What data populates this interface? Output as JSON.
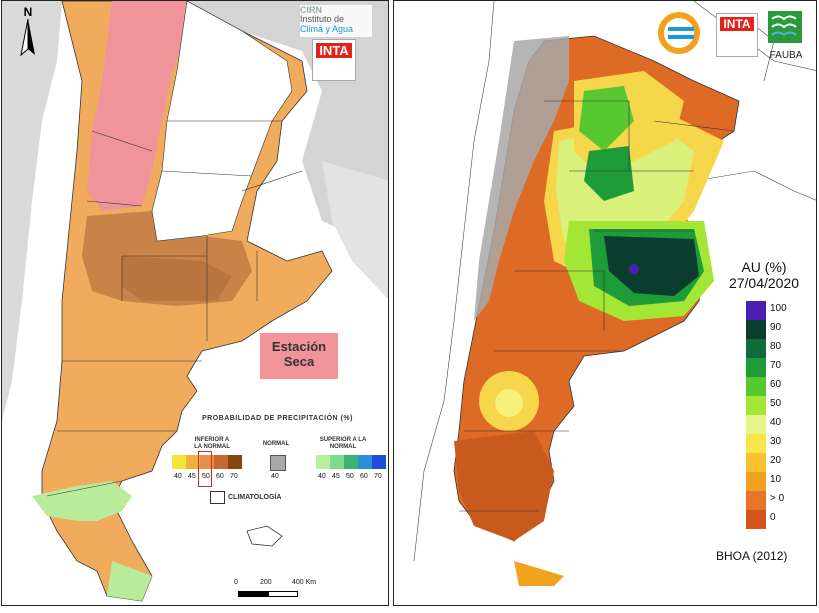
{
  "left_map": {
    "north_label": "N",
    "logo_cirn": {
      "line1": "CIRN",
      "line2": "Instituto de",
      "line3": "Clima y Agua"
    },
    "logo_inta": "INTA",
    "season_label": {
      "line1": "Estación",
      "line2": "Seca"
    },
    "legend": {
      "title": "PROBABILIDAD DE PRECIPITACIÓN (%)",
      "below_label": "INFERIOR A LA NORMAL",
      "normal_label": "NORMAL",
      "above_label": "SUPERIOR A LA NORMAL",
      "below_ticks": [
        "40",
        "45",
        "50",
        "60",
        "70"
      ],
      "normal_ticks": [
        "40"
      ],
      "above_ticks": [
        "40",
        "45",
        "50",
        "60",
        "70"
      ],
      "below_colors": [
        "#f5e53a",
        "#f2b040",
        "#e2914a",
        "#c46a30",
        "#8b4513"
      ],
      "normal_color": "#a9a9a9",
      "above_colors": [
        "#b9f0a0",
        "#7fdc8c",
        "#3cb371",
        "#2a8fd6",
        "#1e4fd8"
      ],
      "climatology_label": "CLIMATOLOGÍA"
    },
    "scale": {
      "ticks": [
        "0",
        "200",
        "400 Km"
      ]
    }
  },
  "right_map": {
    "logo_inta": "INTA",
    "logo_fauba": "FAUBA",
    "variable_label": "AU (%)",
    "date_label": "27/04/2020",
    "model_label": "BHOA (2012)",
    "colorbar": {
      "ticks": [
        "100",
        "90",
        "80",
        "70",
        "60",
        "50",
        "40",
        "30",
        "20",
        "10",
        "> 0",
        "0"
      ],
      "colors": [
        "#4b1fb5",
        "#0b3d2e",
        "#0f6b3a",
        "#1e9c3a",
        "#58c832",
        "#a3e635",
        "#e6f58a",
        "#f6e84a",
        "#f7c22e",
        "#f1a21f",
        "#e8742a",
        "#d4541c"
      ]
    }
  }
}
